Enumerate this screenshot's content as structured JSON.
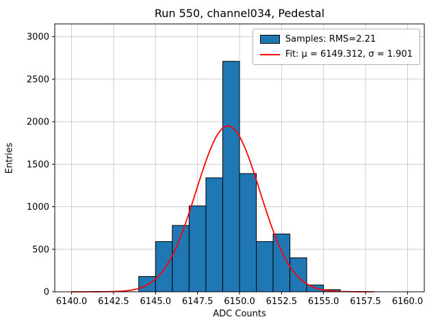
{
  "chart_data": {
    "type": "bar",
    "title": "Run 550, channel034, Pedestal",
    "xlabel": "ADC Counts",
    "ylabel": "Entries",
    "xlim": [
      6139.0,
      6161.0
    ],
    "ylim": [
      0,
      3150
    ],
    "xticks": [
      6140.0,
      6142.5,
      6145.0,
      6147.5,
      6150.0,
      6152.5,
      6155.0,
      6157.5,
      6160.0
    ],
    "xtick_labels": [
      "6140.0",
      "6142.5",
      "6145.0",
      "6147.5",
      "6150.0",
      "6152.5",
      "6155.0",
      "6157.5",
      "6160.0"
    ],
    "yticks": [
      0,
      500,
      1000,
      1500,
      2000,
      2500,
      3000
    ],
    "ytick_labels": [
      "0",
      "500",
      "1000",
      "1500",
      "2000",
      "2500",
      "3000"
    ],
    "grid": true,
    "bin_edges": [
      6144,
      6145,
      6146,
      6147,
      6148,
      6149,
      6150,
      6151,
      6152,
      6153,
      6154,
      6155,
      6156
    ],
    "counts": [
      180,
      590,
      780,
      1010,
      1340,
      2710,
      1390,
      590,
      680,
      400,
      80,
      25
    ],
    "fit": {
      "mu": 6149.312,
      "sigma": 1.901,
      "amplitude": 1950,
      "x_start": 6140.0,
      "x_end": 6158.0
    },
    "legend_position": "upper right",
    "legend_entries": [
      {
        "label": "Samples: RMS=2.21",
        "type": "patch"
      },
      {
        "label": "Fit: μ = 6149.312, σ = 1.901",
        "type": "line"
      }
    ],
    "colors": {
      "bar_fill": "#1f77b4",
      "bar_edge": "#000000",
      "fit_line": "#ff0000",
      "grid": "#cccccc",
      "spine": "#000000"
    }
  }
}
